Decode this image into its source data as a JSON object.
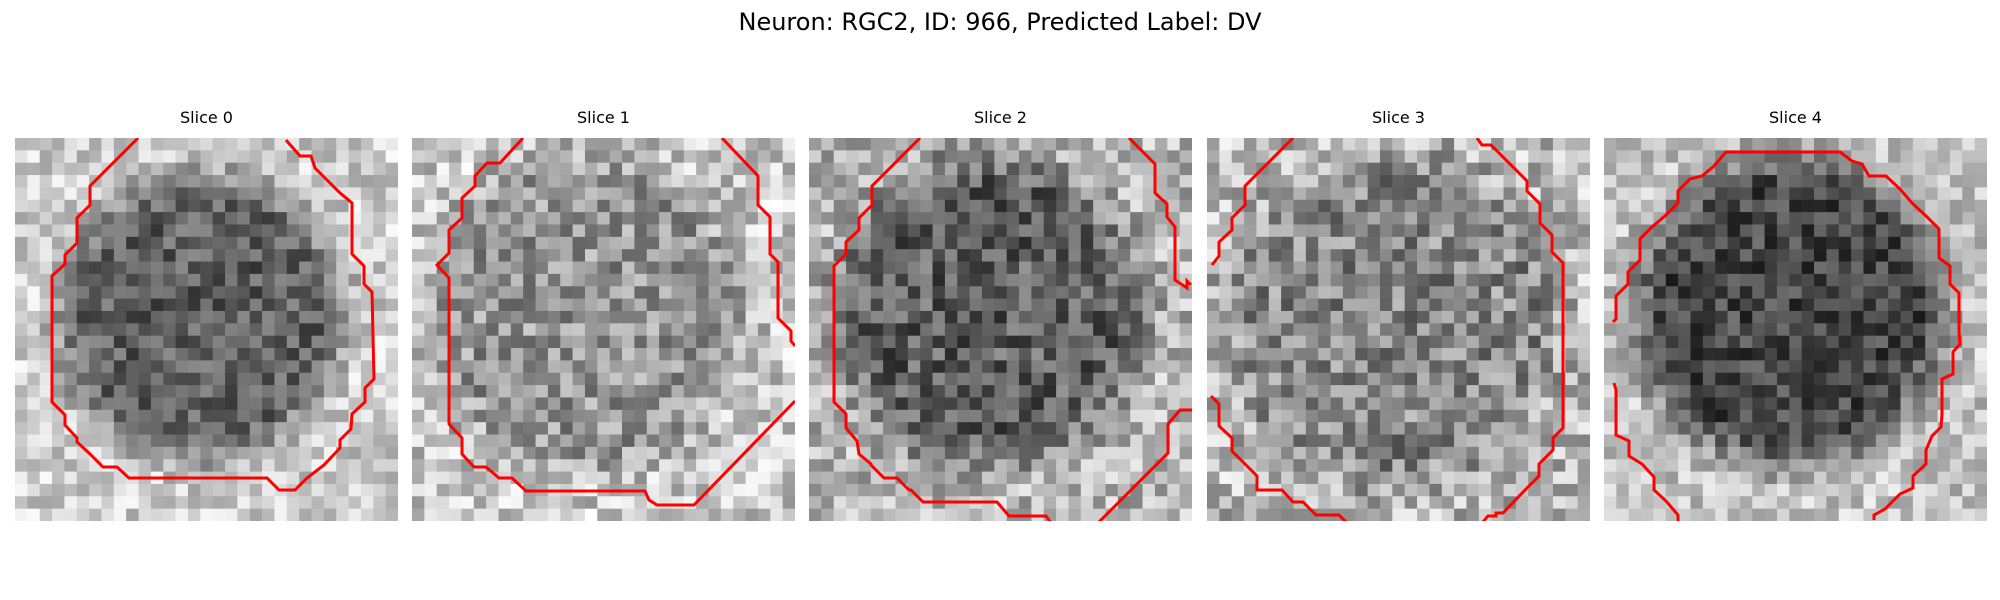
{
  "figure": {
    "title": "Neuron: RGC2, ID: 966, Predicted Label: DV"
  },
  "panels": [
    {
      "title": "Slice 0"
    },
    {
      "title": "Slice 1"
    },
    {
      "title": "Slice 2"
    },
    {
      "title": "Slice 3"
    },
    {
      "title": "Slice 4"
    }
  ],
  "style": {
    "contour_color": "#ff0000",
    "colormap": "grayscale"
  }
}
